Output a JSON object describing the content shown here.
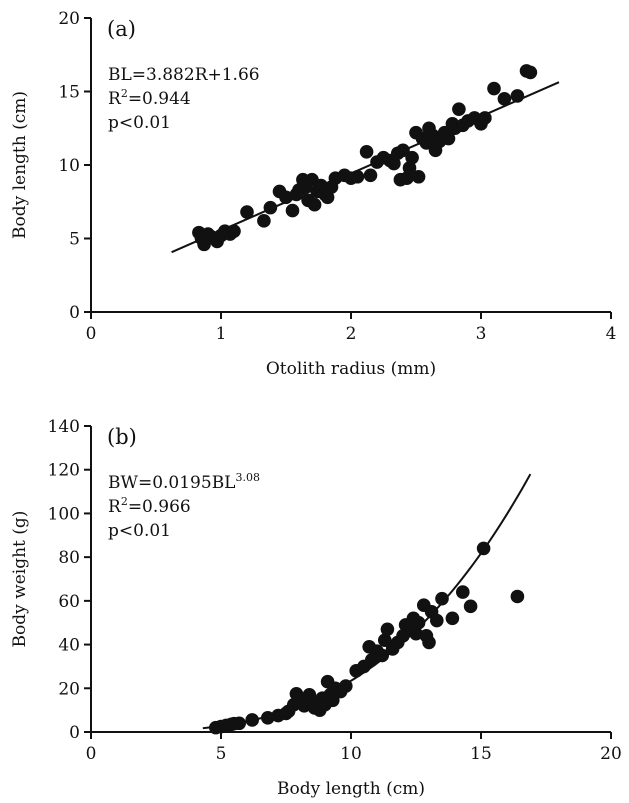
{
  "chart_data": [
    {
      "type": "scatter",
      "panel_label": "(a)",
      "xlabel": "Otolith radius (mm)",
      "ylabel": "Body length (cm)",
      "xlim": [
        0,
        4
      ],
      "ylim": [
        0,
        20
      ],
      "xticks": [
        "0",
        "1",
        "2",
        "3",
        "4"
      ],
      "yticks": [
        "0",
        "5",
        "10",
        "15",
        "20"
      ],
      "annotations": [
        "BL=3.882R+1.66",
        "R",
        "2",
        "=0.944",
        "p<0.01"
      ],
      "fit": {
        "kind": "linear",
        "slope": 3.882,
        "intercept": 1.66,
        "x_range": [
          0.62,
          3.6
        ]
      },
      "points": [
        [
          0.83,
          5.4
        ],
        [
          0.85,
          5.0
        ],
        [
          0.87,
          4.6
        ],
        [
          0.9,
          5.3
        ],
        [
          0.93,
          5.1
        ],
        [
          0.97,
          4.8
        ],
        [
          1.0,
          5.2
        ],
        [
          1.03,
          5.5
        ],
        [
          1.07,
          5.3
        ],
        [
          1.1,
          5.5
        ],
        [
          1.2,
          6.8
        ],
        [
          1.33,
          6.2
        ],
        [
          1.38,
          7.1
        ],
        [
          1.45,
          8.2
        ],
        [
          1.5,
          7.8
        ],
        [
          1.55,
          6.9
        ],
        [
          1.58,
          8.0
        ],
        [
          1.6,
          8.3
        ],
        [
          1.63,
          9.0
        ],
        [
          1.65,
          8.6
        ],
        [
          1.67,
          7.6
        ],
        [
          1.7,
          9.0
        ],
        [
          1.72,
          7.3
        ],
        [
          1.74,
          8.2
        ],
        [
          1.77,
          8.6
        ],
        [
          1.8,
          8.0
        ],
        [
          1.82,
          7.8
        ],
        [
          1.85,
          8.5
        ],
        [
          1.88,
          9.1
        ],
        [
          1.95,
          9.3
        ],
        [
          2.0,
          9.1
        ],
        [
          2.05,
          9.2
        ],
        [
          2.12,
          10.9
        ],
        [
          2.15,
          9.3
        ],
        [
          2.2,
          10.2
        ],
        [
          2.25,
          10.5
        ],
        [
          2.3,
          10.3
        ],
        [
          2.33,
          10.1
        ],
        [
          2.36,
          10.8
        ],
        [
          2.38,
          9.0
        ],
        [
          2.4,
          11.0
        ],
        [
          2.43,
          9.1
        ],
        [
          2.45,
          9.8
        ],
        [
          2.47,
          10.5
        ],
        [
          2.5,
          12.2
        ],
        [
          2.52,
          9.2
        ],
        [
          2.55,
          11.8
        ],
        [
          2.58,
          11.5
        ],
        [
          2.6,
          12.5
        ],
        [
          2.63,
          12.0
        ],
        [
          2.65,
          11.0
        ],
        [
          2.68,
          11.6
        ],
        [
          2.72,
          12.2
        ],
        [
          2.75,
          11.8
        ],
        [
          2.78,
          12.8
        ],
        [
          2.8,
          12.5
        ],
        [
          2.83,
          13.8
        ],
        [
          2.86,
          12.7
        ],
        [
          2.9,
          13.0
        ],
        [
          2.95,
          13.2
        ],
        [
          3.0,
          12.8
        ],
        [
          3.03,
          13.2
        ],
        [
          3.1,
          15.2
        ],
        [
          3.18,
          14.5
        ],
        [
          3.28,
          14.7
        ],
        [
          3.35,
          16.4
        ],
        [
          3.38,
          16.3
        ]
      ]
    },
    {
      "type": "scatter",
      "panel_label": "(b)",
      "xlabel": "Body length (cm)",
      "ylabel": "Body weight (g)",
      "xlim": [
        0,
        20
      ],
      "ylim": [
        0,
        140
      ],
      "xticks": [
        "0",
        "5",
        "10",
        "15",
        "20"
      ],
      "yticks": [
        "0",
        "20",
        "40",
        "60",
        "80",
        "100",
        "120",
        "140"
      ],
      "annotations": [
        "BW=0.0195BL",
        "3.08",
        "R",
        "2",
        "=0.966",
        "p<0.01"
      ],
      "fit": {
        "kind": "power",
        "a": 0.0195,
        "b": 3.08,
        "x_range": [
          4.3,
          16.9
        ]
      },
      "points": [
        [
          4.8,
          2.0
        ],
        [
          5.0,
          2.5
        ],
        [
          5.2,
          3.0
        ],
        [
          5.4,
          3.5
        ],
        [
          5.5,
          3.8
        ],
        [
          5.7,
          4.0
        ],
        [
          6.2,
          5.5
        ],
        [
          6.8,
          6.5
        ],
        [
          7.2,
          7.5
        ],
        [
          7.5,
          8.5
        ],
        [
          7.6,
          9.5
        ],
        [
          7.8,
          12.5
        ],
        [
          7.9,
          17.5
        ],
        [
          8.0,
          15.5
        ],
        [
          8.2,
          12.0
        ],
        [
          8.3,
          14.0
        ],
        [
          8.4,
          17.0
        ],
        [
          8.6,
          11.0
        ],
        [
          8.7,
          13.5
        ],
        [
          8.8,
          10.0
        ],
        [
          8.9,
          15.5
        ],
        [
          9.0,
          12.5
        ],
        [
          9.1,
          23.0
        ],
        [
          9.2,
          17.0
        ],
        [
          9.3,
          14.5
        ],
        [
          9.4,
          20.0
        ],
        [
          9.6,
          18.5
        ],
        [
          9.8,
          21.0
        ],
        [
          10.2,
          28.0
        ],
        [
          10.5,
          30.0
        ],
        [
          10.7,
          39.0
        ],
        [
          10.8,
          33.0
        ],
        [
          11.0,
          37.0
        ],
        [
          11.2,
          35.0
        ],
        [
          11.3,
          42.0
        ],
        [
          11.4,
          47.0
        ],
        [
          11.6,
          38.0
        ],
        [
          11.8,
          41.0
        ],
        [
          12.0,
          44.0
        ],
        [
          12.1,
          49.0
        ],
        [
          12.3,
          47.0
        ],
        [
          12.4,
          52.0
        ],
        [
          12.5,
          45.0
        ],
        [
          12.6,
          50.0
        ],
        [
          12.8,
          58.0
        ],
        [
          12.9,
          44.0
        ],
        [
          13.0,
          41.0
        ],
        [
          13.1,
          55.0
        ],
        [
          13.3,
          51.0
        ],
        [
          13.5,
          61.0
        ],
        [
          13.9,
          52.0
        ],
        [
          14.3,
          64.0
        ],
        [
          14.6,
          57.5
        ],
        [
          15.1,
          84.0
        ],
        [
          16.4,
          62.0
        ]
      ]
    }
  ]
}
